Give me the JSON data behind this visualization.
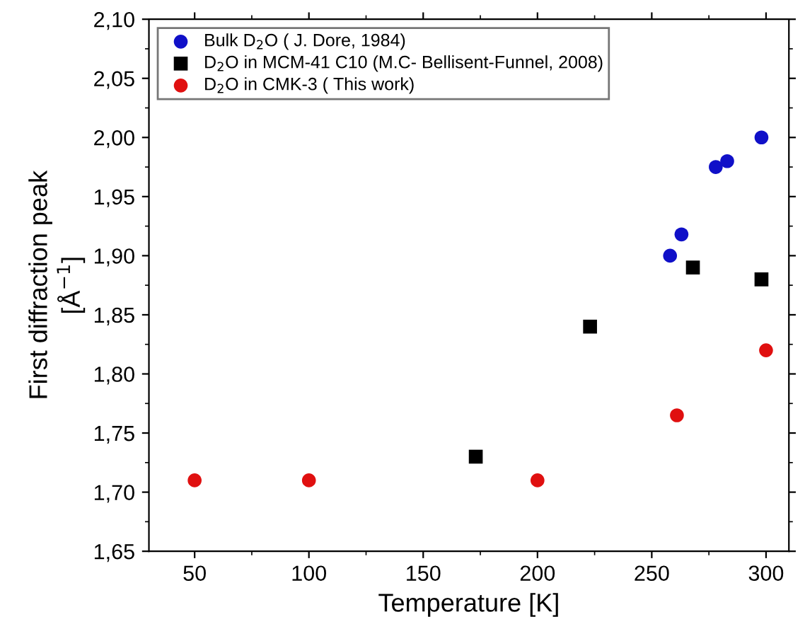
{
  "chart_data": {
    "type": "scatter",
    "xlabel": "Temperature [K]",
    "ylabel": "First diffraction peak\n[Å$^{−1}$]",
    "xlim": [
      30,
      310
    ],
    "xticks": [
      50,
      100,
      150,
      200,
      250,
      300
    ],
    "ylim": [
      1.65,
      2.1
    ],
    "yticks": [
      {
        "value": 1.65,
        "label": "1,65"
      },
      {
        "value": 1.7,
        "label": "1,70"
      },
      {
        "value": 1.75,
        "label": "1,75"
      },
      {
        "value": 1.8,
        "label": "1,80"
      },
      {
        "value": 1.85,
        "label": "1,85"
      },
      {
        "value": 1.9,
        "label": "1,90"
      },
      {
        "value": 1.95,
        "label": "1,95"
      },
      {
        "value": 2.0,
        "label": "2,00"
      },
      {
        "value": 2.05,
        "label": "2,05"
      },
      {
        "value": 2.1,
        "label": "2,10"
      }
    ],
    "legend": "top left",
    "grid": false,
    "series": [
      {
        "name": "Bulk D$_{2}$O ( J. Dore, 1984)",
        "color": "#1010c8",
        "marker": "circle",
        "x": [
          258,
          263,
          278,
          283,
          298
        ],
        "values": [
          1.9,
          1.918,
          1.975,
          1.98,
          2.0
        ]
      },
      {
        "name": "D$_{2}$O in MCM-41 C10 (M.C- Bellisent-Funnel, 2008)",
        "color": "#000000",
        "marker": "square",
        "x": [
          173,
          223,
          268,
          298
        ],
        "values": [
          1.73,
          1.84,
          1.89,
          1.88
        ]
      },
      {
        "name": "D$_{2}$O in CMK-3 ( This work)",
        "color": "#e01010",
        "marker": "circle",
        "x": [
          50,
          100,
          200,
          261,
          300
        ],
        "values": [
          1.71,
          1.71,
          1.71,
          1.765,
          1.82
        ]
      }
    ]
  }
}
